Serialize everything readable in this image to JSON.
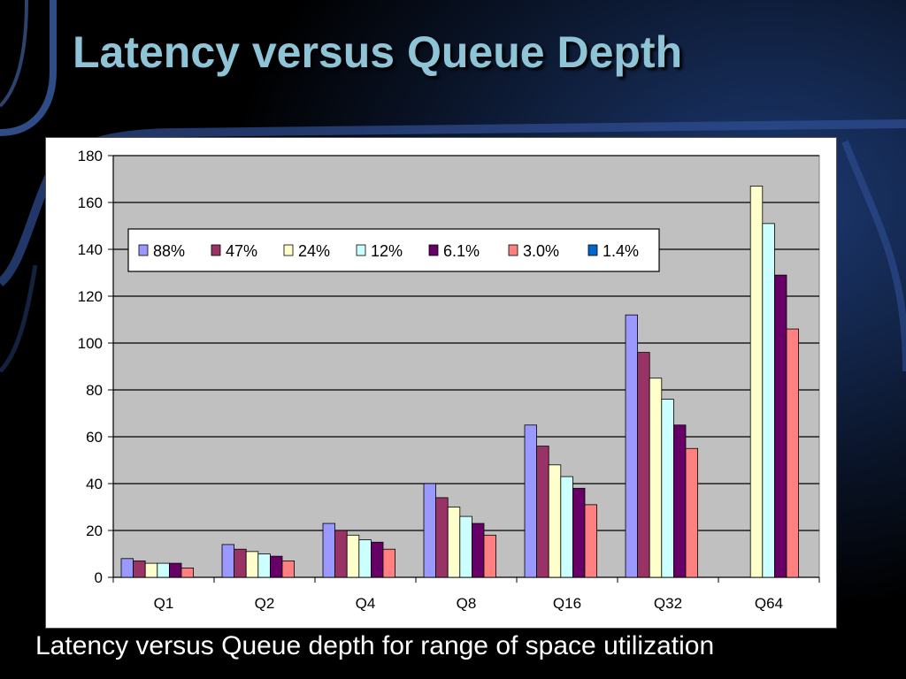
{
  "slide": {
    "title": "Latency versus Queue Depth",
    "caption": "Latency versus Queue depth for range of space utilization"
  },
  "chart_data": {
    "type": "bar",
    "categories": [
      "Q1",
      "Q2",
      "Q4",
      "Q8",
      "Q16",
      "Q32",
      "Q64"
    ],
    "ylim": [
      0,
      180
    ],
    "yticks": [
      0,
      20,
      40,
      60,
      80,
      100,
      120,
      140,
      160,
      180
    ],
    "grid": true,
    "legend_position": "top-left",
    "plot_background": "#c0c0c0",
    "series": [
      {
        "name": "88%",
        "color": "#9999ff",
        "values": [
          8,
          14,
          23,
          40,
          65,
          112,
          null
        ]
      },
      {
        "name": "47%",
        "color": "#993366",
        "values": [
          7,
          12,
          20,
          34,
          56,
          96,
          null
        ]
      },
      {
        "name": "24%",
        "color": "#ffffcc",
        "values": [
          6,
          11,
          18,
          30,
          48,
          85,
          167
        ]
      },
      {
        "name": "12%",
        "color": "#ccffff",
        "values": [
          6,
          10,
          16,
          26,
          43,
          76,
          151
        ]
      },
      {
        "name": "6.1%",
        "color": "#660066",
        "values": [
          6,
          9,
          15,
          23,
          38,
          65,
          129
        ]
      },
      {
        "name": "3.0%",
        "color": "#ff8080",
        "values": [
          4,
          7,
          12,
          18,
          31,
          55,
          106
        ]
      },
      {
        "name": "1.4%",
        "color": "#0066cc",
        "values": [
          null,
          null,
          null,
          null,
          null,
          null,
          null
        ]
      }
    ]
  }
}
